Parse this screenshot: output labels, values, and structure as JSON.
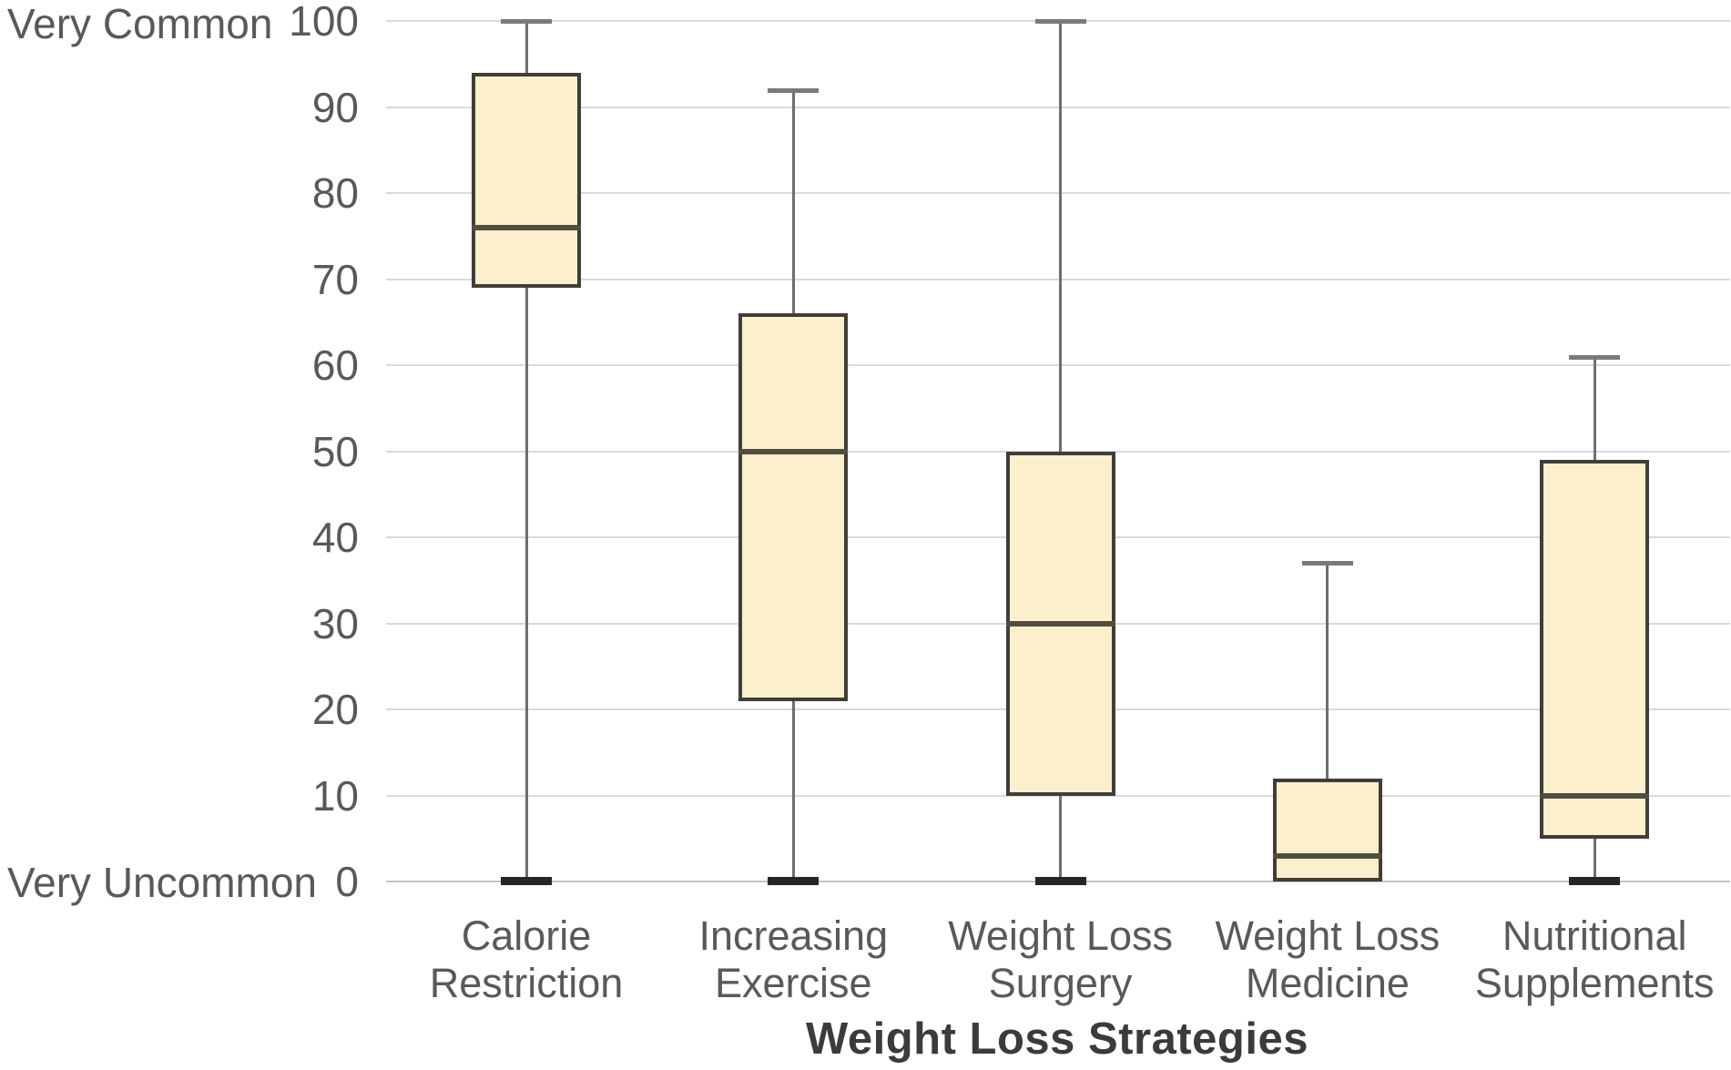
{
  "chart": {
    "y_axis_top_annotation": "Very Common",
    "y_axis_bottom_annotation": "Very Uncommon",
    "x_axis_title": "Weight Loss Strategies"
  },
  "chart_data": {
    "type": "boxplot",
    "title": "",
    "xlabel": "Weight Loss Strategies",
    "ylabel": "",
    "ylim": [
      0,
      100
    ],
    "yticks": [
      0,
      10,
      20,
      30,
      40,
      50,
      60,
      70,
      80,
      90,
      100
    ],
    "y_annotations": {
      "top": "Very Common",
      "bottom": "Very Uncommon"
    },
    "grid": true,
    "legend": false,
    "categories": [
      "Calorie Restriction",
      "Increasing Exercise",
      "Weight Loss Surgery",
      "Weight Loss Medicine",
      "Nutritional Supplements"
    ],
    "boxes": [
      {
        "category": "Calorie Restriction",
        "label_lines": [
          "Calorie",
          "Restriction"
        ],
        "min": 0,
        "q1": 69,
        "median": 76,
        "q3": 94,
        "max": 100
      },
      {
        "category": "Increasing Exercise",
        "label_lines": [
          "Increasing",
          "Exercise"
        ],
        "min": 0,
        "q1": 21,
        "median": 50,
        "q3": 66,
        "max": 92
      },
      {
        "category": "Weight Loss Surgery",
        "label_lines": [
          "Weight Loss",
          "Surgery"
        ],
        "min": 0,
        "q1": 10,
        "median": 30,
        "q3": 50,
        "max": 100
      },
      {
        "category": "Weight Loss Medicine",
        "label_lines": [
          "Weight Loss",
          "Medicine"
        ],
        "min": 0,
        "q1": 0,
        "median": 3,
        "q3": 12,
        "max": 37
      },
      {
        "category": "Nutritional Supplements",
        "label_lines": [
          "Nutritional",
          "Supplements"
        ],
        "min": 0,
        "q1": 5,
        "median": 10,
        "q3": 49,
        "max": 61
      }
    ],
    "colors": {
      "box_fill": "#FCEFCE",
      "box_border": "#403E36",
      "median": "#514E3F",
      "whisker": "#6E6E6E",
      "whisker_cap_top": "#7A7A7A",
      "whisker_cap_bottom": "#262626",
      "gridline": "#D9D9D9",
      "axis_line": "#C3C3C3",
      "tick_text": "#595959",
      "title_text": "#3B3B3B"
    }
  }
}
